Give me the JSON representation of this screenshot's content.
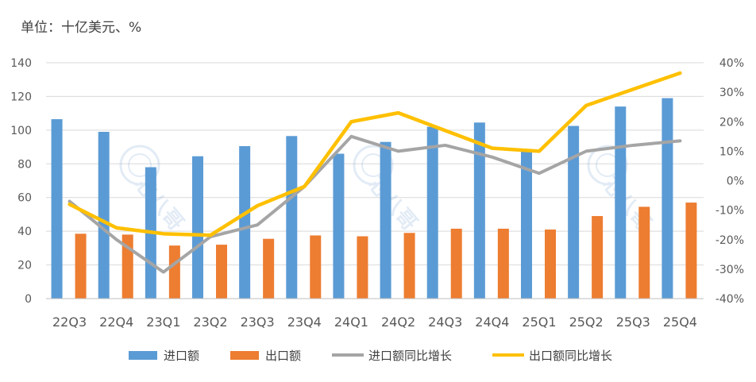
{
  "unit_label": "单位：十亿美元、%",
  "chart_data": {
    "type": "bar",
    "categories": [
      "22Q3",
      "22Q4",
      "23Q1",
      "23Q2",
      "23Q3",
      "23Q4",
      "24Q1",
      "24Q2",
      "24Q3",
      "24Q4",
      "25Q1",
      "25Q2",
      "25Q3",
      "25Q4"
    ],
    "series": [
      {
        "name": "进口额",
        "type": "bar",
        "axis": "left",
        "color": "#5B9BD5",
        "values": [
          106.5,
          99,
          78,
          84.5,
          90.5,
          96.5,
          86,
          93,
          102,
          104.5,
          87.5,
          102.5,
          114,
          119
        ]
      },
      {
        "name": "出口额",
        "type": "bar",
        "axis": "left",
        "color": "#ED7D31",
        "values": [
          38.5,
          38,
          31.5,
          32,
          35.5,
          37.5,
          37,
          39,
          41.5,
          41.5,
          41,
          49,
          54.5,
          57
        ]
      },
      {
        "name": "进口额同比增长",
        "type": "line",
        "axis": "right",
        "color": "#A5A5A5",
        "values": [
          -7,
          -20,
          -31,
          -19,
          -15,
          -2,
          15,
          10,
          12,
          8,
          2.5,
          10,
          12,
          13.5
        ]
      },
      {
        "name": "出口额同比增长",
        "type": "line",
        "axis": "right",
        "color": "#FFC000",
        "values": [
          -8,
          -16,
          -18,
          -18.5,
          -8.5,
          -2,
          20,
          23,
          17,
          11,
          10,
          25.5,
          31,
          36.5
        ]
      }
    ],
    "y_left": {
      "min": 0,
      "max": 140,
      "ticks": [
        "0",
        "20",
        "40",
        "60",
        "80",
        "100",
        "120",
        "140"
      ]
    },
    "y_right": {
      "min": -40,
      "max": 40,
      "ticks": [
        "-40%",
        "-30%",
        "-20%",
        "-10%",
        "0%",
        "10%",
        "20%",
        "30%",
        "40%"
      ]
    },
    "grid": true,
    "legend_position": "bottom"
  },
  "watermark": {
    "text": "芯八哥"
  }
}
